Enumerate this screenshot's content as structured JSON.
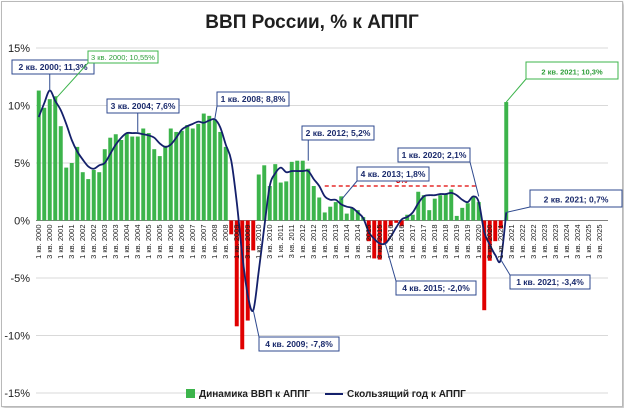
{
  "chart_data": {
    "type": "bar+line",
    "title": "ВВП России, % к АППГ",
    "ylim": [
      -15,
      15
    ],
    "yticks": [
      "15%",
      "10%",
      "5%",
      "0%",
      "-5%",
      "-10%",
      "-15%"
    ],
    "ytick_values": [
      15,
      10,
      5,
      0,
      -5,
      -10,
      -15
    ],
    "x_start_year": 2000,
    "x_end_year": 2025,
    "x_labels": [
      "1 кв. 2000",
      "3 кв. 2000",
      "1 кв. 2001",
      "3 кв. 2001",
      "1 кв. 2002",
      "3 кв. 2002",
      "1 кв. 2003",
      "3 кв. 2003",
      "1 кв. 2004",
      "3 кв. 2004",
      "1 кв. 2005",
      "3 кв. 2005",
      "1 кв. 2006",
      "3 кв. 2006",
      "1 кв. 2007",
      "3 кв. 2007",
      "1 кв. 2008",
      "3 кв. 2008",
      "1 кв. 2009",
      "3 кв. 2009",
      "1 кв. 2010",
      "3 кв. 2010",
      "1 кв. 2011",
      "3 кв. 2011",
      "1 кв. 2012",
      "3 кв. 2012",
      "1 кв. 2013",
      "3 кв. 2013",
      "1 кв. 2014",
      "3 кв. 2014",
      "1 кв. 2015",
      "3 кв. 2015",
      "1 кв. 2016",
      "3 кв. 2016",
      "1 кв. 2017",
      "3 кв. 2017",
      "1 кв. 2018",
      "3 кв. 2018",
      "1 кв. 2019",
      "3 кв. 2019",
      "1 кв. 2020",
      "3 кв. 2020",
      "1 кв. 2021",
      "3 кв. 2021",
      "1 кв. 2022",
      "3 кв. 2022",
      "1 кв. 2023",
      "3 кв. 2023",
      "1 кв. 2024",
      "3 кв. 2024",
      "1 кв. 2025",
      "3 кв. 2025"
    ],
    "series": [
      {
        "name": "Динамика ВВП к АППГ",
        "color_positive": "#3cb44b",
        "color_negative": "#e00000",
        "values": [
          11.3,
          9.8,
          10.55,
          10.8,
          8.2,
          4.6,
          5.0,
          6.4,
          4.2,
          3.6,
          4.4,
          4.2,
          6.2,
          7.2,
          7.5,
          7.0,
          7.6,
          7.3,
          7.3,
          8.0,
          7.6,
          6.2,
          5.6,
          6.5,
          8.0,
          7.7,
          7.8,
          8.3,
          8.0,
          8.4,
          9.3,
          9.1,
          8.8,
          7.7,
          6.4,
          -1.2,
          -9.2,
          -11.2,
          -8.7,
          -2.6,
          4.0,
          4.8,
          3.0,
          4.9,
          3.3,
          3.4,
          5.1,
          5.2,
          5.2,
          4.5,
          3.0,
          2.0,
          0.7,
          1.2,
          1.6,
          2.1,
          0.6,
          1.1,
          0.9,
          0.3,
          -1.8,
          -3.3,
          -3.4,
          -2.0,
          -0.5,
          -0.2,
          -0.5,
          0.5,
          0.5,
          2.5,
          2.2,
          0.9,
          1.9,
          2.2,
          2.3,
          2.7,
          0.4,
          1.1,
          1.5,
          2.1,
          1.6,
          -7.8,
          -3.5,
          -1.8,
          -0.7,
          10.3
        ]
      },
      {
        "name": "Скользящий год к АППГ",
        "color": "#14206b",
        "values": [
          9.0,
          10.2,
          11.3,
          10.4,
          9.6,
          8.4,
          7.0,
          6.0,
          5.3,
          4.7,
          4.5,
          4.8,
          5.0,
          5.8,
          6.6,
          7.2,
          7.6,
          7.6,
          7.6,
          7.5,
          7.4,
          7.2,
          6.7,
          6.4,
          6.6,
          7.2,
          7.9,
          8.2,
          8.4,
          8.6,
          8.5,
          8.7,
          8.8,
          8.1,
          6.6,
          5.2,
          1.6,
          -3.0,
          -6.5,
          -7.8,
          -4.4,
          -0.6,
          3.0,
          4.1,
          4.6,
          4.2,
          4.3,
          4.3,
          4.3,
          4.3,
          3.6,
          3.0,
          2.1,
          1.8,
          1.8,
          1.4,
          1.2,
          1.1,
          0.7,
          0.2,
          -1.0,
          -1.6,
          -2.0,
          -2.0,
          -1.4,
          -0.6,
          0.1,
          0.3,
          0.7,
          1.5,
          2.1,
          2.2,
          2.2,
          2.3,
          2.3,
          2.4,
          2.2,
          1.8,
          1.6,
          2.1,
          1.6,
          -1.0,
          -2.1,
          -3.0,
          -3.4,
          0.7
        ]
      }
    ],
    "reference_line": {
      "value": 3,
      "label": "3%",
      "color": "#e00000"
    },
    "annotations": [
      {
        "text": "2 кв. 2000; 11,3%",
        "style": "dark"
      },
      {
        "text": "3 кв. 2000; 10,55%",
        "style": "green"
      },
      {
        "text": "3 кв. 2004; 7,6%",
        "style": "dark"
      },
      {
        "text": "1 кв. 2008; 8,8%",
        "style": "dark"
      },
      {
        "text": "2 кв. 2012; 5,2%",
        "style": "dark"
      },
      {
        "text": "4 кв. 2013; 1,8%",
        "style": "dark"
      },
      {
        "text": "1 кв. 2020; 2,1%",
        "style": "dark"
      },
      {
        "text": "4 кв. 2009; -7,8%",
        "style": "dark"
      },
      {
        "text": "4 кв. 2015; -2,0%",
        "style": "dark"
      },
      {
        "text": "1 кв. 2021; -3,4%",
        "style": "dark"
      },
      {
        "text": "2 кв. 2021; 10,3%",
        "style": "green-big"
      },
      {
        "text": "2 кв. 2021; 0,7%",
        "style": "dark-big"
      }
    ],
    "legend": {
      "position": "bottom",
      "items": [
        {
          "label": "Динамика ВВП к АППГ",
          "color": "#3cb44b",
          "kind": "bar"
        },
        {
          "label": "Скользящий год к АППГ",
          "color": "#14206b",
          "kind": "line"
        }
      ]
    }
  }
}
